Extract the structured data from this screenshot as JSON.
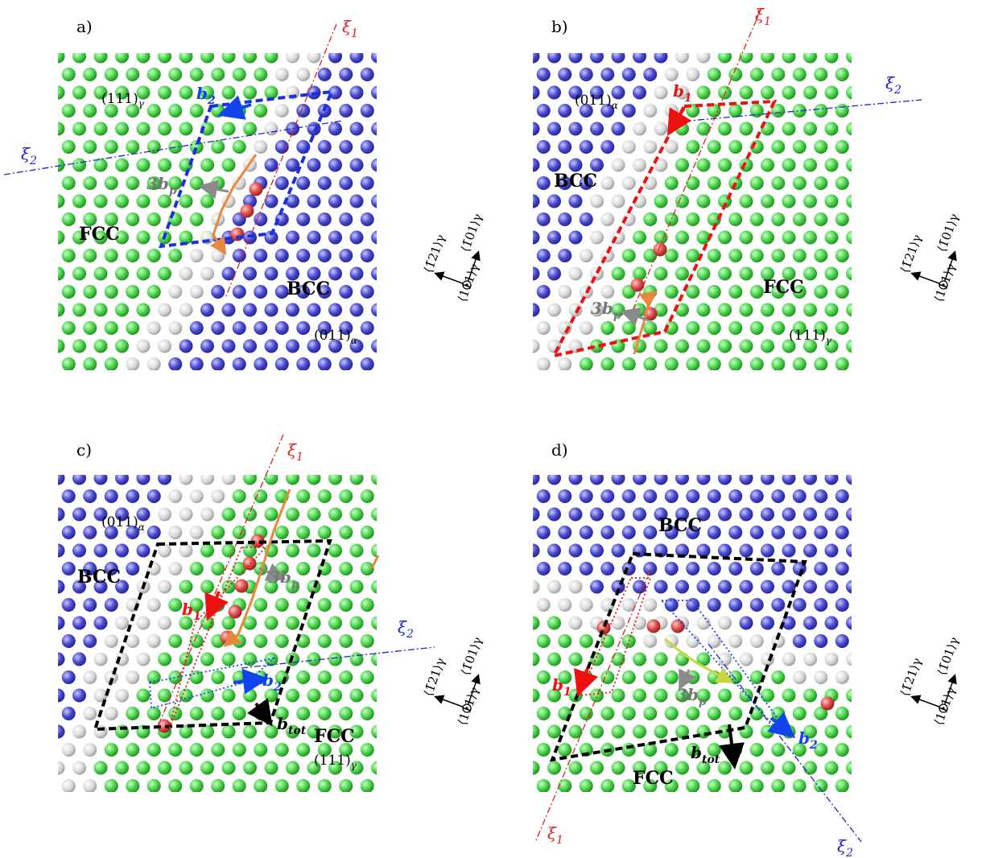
{
  "colors": {
    "fcc": "#4cd44c",
    "bcc": "#4a4ad0",
    "other": "#d9d9d9",
    "core": "#e04848",
    "xi1": "#dd2222",
    "xi2": "#2222cc",
    "burgers_b1": "#ee1111",
    "burgers_b2": "#1144ee",
    "burgers_tot": "#000000",
    "partial_3bp": "#8a8a8a",
    "dislocation_line": "#e8883a",
    "dislocation_line_d": "#c8d640"
  },
  "panels": [
    {
      "tag": "a)",
      "xi1": "ξ1",
      "xi2": "ξ2",
      "phase_fcc": "FCC",
      "phase_bcc": "BCC",
      "plane_fcc": "(111)γ",
      "plane_bcc": "(011)α",
      "b1": "",
      "b2": "b2",
      "btot": "",
      "bp": "3bp"
    },
    {
      "tag": "b)",
      "xi1": "ξ1",
      "xi2": "ξ2",
      "phase_fcc": "FCC",
      "phase_bcc": "BCC",
      "plane_fcc": "(111)γ",
      "plane_bcc": "(011)α",
      "b1": "b1",
      "b2": "",
      "btot": "",
      "bp": "3bp"
    },
    {
      "tag": "c)",
      "xi1": "ξ1",
      "xi2": "ξ2",
      "phase_fcc": "FCC",
      "phase_bcc": "BCC",
      "plane_fcc": "(111)γ",
      "plane_bcc": "(011)α",
      "b1": "b1",
      "b2": "b2",
      "btot": "btot",
      "bp": "3bp"
    },
    {
      "tag": "d)",
      "xi1": "ξ1",
      "xi2": "ξ2",
      "phase_fcc": "FCC",
      "phase_bcc": "BCC",
      "plane_fcc": "",
      "plane_bcc": "",
      "b1": "b1",
      "b2": "b2",
      "btot": "btot",
      "bp": "3bp"
    }
  ],
  "axes": {
    "dir_x": "⟨1̄21⟩γ",
    "dir_y": "⟨1̄01⟩γ",
    "dir_z": "⟨111⟩γ"
  }
}
